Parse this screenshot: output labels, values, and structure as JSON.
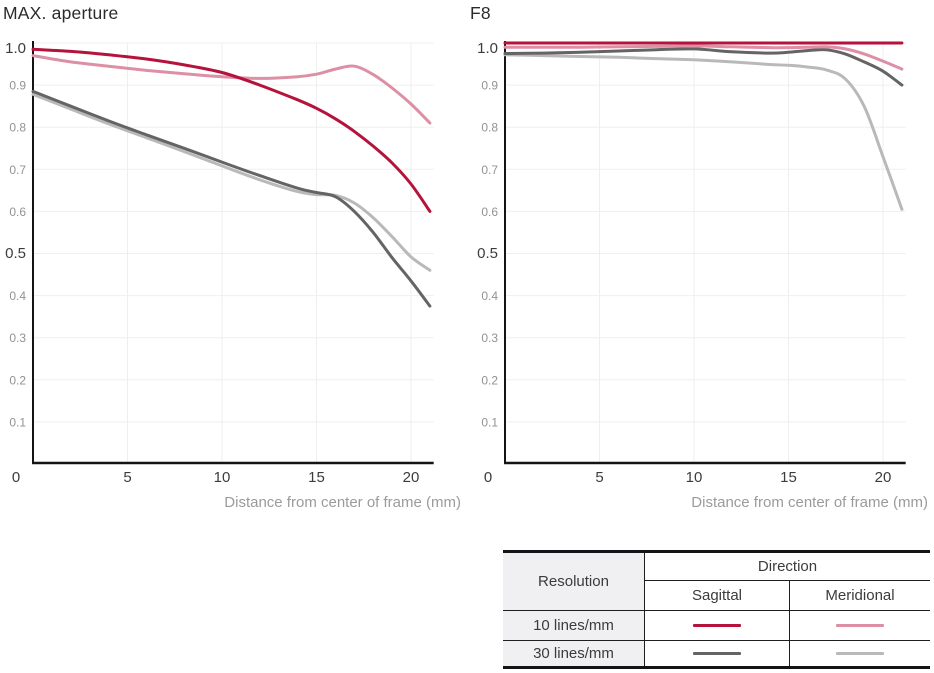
{
  "colors": {
    "sagittal10": "#b5123c",
    "meridional10": "#dd8fa5",
    "sagittal30": "#646464",
    "meridional30": "#b9b9b9",
    "axis": "#141414",
    "grid": "#efefef",
    "tick_major": "#3c3c3c",
    "tick_minor": "#909296",
    "caption_gray": "#9b9b9b"
  },
  "chart_data": [
    {
      "type": "line",
      "title": "MAX. aperture",
      "xlabel": "Distance from center of frame (mm)",
      "xlim": [
        0,
        21.2
      ],
      "ylim": [
        0,
        1.0
      ],
      "grid": true,
      "legend_position": "bottom-right-table",
      "xticks": [
        {
          "value": 0,
          "label": "0"
        },
        {
          "value": 5,
          "label": "5"
        },
        {
          "value": 10,
          "label": "10"
        },
        {
          "value": 15,
          "label": "15"
        },
        {
          "value": 20,
          "label": "20"
        }
      ],
      "yticks": [
        {
          "value": 1.0,
          "label": "1.0",
          "emphasis": true
        },
        {
          "value": 0.9,
          "label": "0.9",
          "emphasis": false
        },
        {
          "value": 0.8,
          "label": "0.8",
          "emphasis": false
        },
        {
          "value": 0.7,
          "label": "0.7",
          "emphasis": false
        },
        {
          "value": 0.6,
          "label": "0.6",
          "emphasis": false
        },
        {
          "value": 0.5,
          "label": "0.5",
          "emphasis": true
        },
        {
          "value": 0.4,
          "label": "0.4",
          "emphasis": false
        },
        {
          "value": 0.3,
          "label": "0.3",
          "emphasis": false
        },
        {
          "value": 0.2,
          "label": "0.2",
          "emphasis": false
        },
        {
          "value": 0.1,
          "label": "0.1",
          "emphasis": false
        }
      ],
      "x": [
        0,
        2,
        4,
        6,
        8,
        10,
        12,
        14,
        15,
        16,
        17,
        18,
        19,
        20,
        21
      ],
      "series": [
        {
          "name": "10 lines/mm Sagittal",
          "color_key": "sagittal10",
          "values": [
            0.985,
            0.98,
            0.972,
            0.962,
            0.948,
            0.93,
            0.9,
            0.865,
            0.845,
            0.82,
            0.79,
            0.755,
            0.715,
            0.665,
            0.6
          ]
        },
        {
          "name": "10 lines/mm Meridional",
          "color_key": "meridional10",
          "values": [
            0.97,
            0.955,
            0.945,
            0.935,
            0.927,
            0.92,
            0.916,
            0.92,
            0.926,
            0.938,
            0.945,
            0.925,
            0.893,
            0.855,
            0.81
          ]
        },
        {
          "name": "30 lines/mm Sagittal",
          "color_key": "sagittal30",
          "values": [
            0.885,
            0.85,
            0.815,
            0.782,
            0.75,
            0.717,
            0.685,
            0.655,
            0.645,
            0.635,
            0.6,
            0.55,
            0.49,
            0.435,
            0.375
          ]
        },
        {
          "name": "30 lines/mm Meridional",
          "color_key": "meridional30",
          "values": [
            0.878,
            0.843,
            0.808,
            0.775,
            0.742,
            0.708,
            0.675,
            0.647,
            0.64,
            0.638,
            0.62,
            0.585,
            0.54,
            0.492,
            0.46
          ]
        }
      ]
    },
    {
      "type": "line",
      "title": "F8",
      "xlabel": "Distance from center of frame (mm)",
      "xlim": [
        0,
        21.2
      ],
      "ylim": [
        0,
        1.0
      ],
      "grid": true,
      "legend_position": "bottom-right-table",
      "xticks": [
        {
          "value": 0,
          "label": "0"
        },
        {
          "value": 5,
          "label": "5"
        },
        {
          "value": 10,
          "label": "10"
        },
        {
          "value": 15,
          "label": "15"
        },
        {
          "value": 20,
          "label": "20"
        }
      ],
      "yticks": [
        {
          "value": 1.0,
          "label": "1.0",
          "emphasis": true
        },
        {
          "value": 0.9,
          "label": "0.9",
          "emphasis": false
        },
        {
          "value": 0.8,
          "label": "0.8",
          "emphasis": false
        },
        {
          "value": 0.7,
          "label": "0.7",
          "emphasis": false
        },
        {
          "value": 0.6,
          "label": "0.6",
          "emphasis": false
        },
        {
          "value": 0.5,
          "label": "0.5",
          "emphasis": true
        },
        {
          "value": 0.4,
          "label": "0.4",
          "emphasis": false
        },
        {
          "value": 0.3,
          "label": "0.3",
          "emphasis": false
        },
        {
          "value": 0.2,
          "label": "0.2",
          "emphasis": false
        },
        {
          "value": 0.1,
          "label": "0.1",
          "emphasis": false
        }
      ],
      "x": [
        0,
        2,
        4,
        6,
        8,
        10,
        12,
        14,
        15,
        16,
        17,
        18,
        19,
        20,
        21
      ],
      "series": [
        {
          "name": "10 lines/mm Sagittal",
          "color_key": "sagittal10",
          "values": [
            1.0,
            1.0,
            1.0,
            1.0,
            1.0,
            1.0,
            1.0,
            1.0,
            1.0,
            1.0,
            1.0,
            1.0,
            1.0,
            1.0,
            1.0
          ]
        },
        {
          "name": "10 lines/mm Meridional",
          "color_key": "meridional10",
          "values": [
            0.99,
            0.99,
            0.99,
            0.991,
            0.992,
            0.993,
            0.991,
            0.989,
            0.989,
            0.99,
            0.991,
            0.986,
            0.974,
            0.957,
            0.938
          ]
        },
        {
          "name": "30 lines/mm Sagittal",
          "color_key": "sagittal30",
          "values": [
            0.975,
            0.976,
            0.978,
            0.981,
            0.984,
            0.986,
            0.979,
            0.976,
            0.978,
            0.982,
            0.984,
            0.974,
            0.955,
            0.933,
            0.9
          ]
        },
        {
          "name": "30 lines/mm Meridional",
          "color_key": "meridional30",
          "values": [
            0.972,
            0.97,
            0.968,
            0.966,
            0.963,
            0.96,
            0.955,
            0.949,
            0.947,
            0.943,
            0.936,
            0.915,
            0.85,
            0.73,
            0.605
          ]
        }
      ]
    }
  ],
  "legend_table": {
    "resolution_header": "Resolution",
    "direction_header": "Direction",
    "columns": [
      "Sagittal",
      "Meridional"
    ],
    "rows": [
      {
        "label": "10 lines/mm",
        "sagittal_color": "#b5123c",
        "meridional_color": "#dd8fa5"
      },
      {
        "label": "30 lines/mm",
        "sagittal_color": "#646464",
        "meridional_color": "#b9b9b9"
      }
    ]
  }
}
